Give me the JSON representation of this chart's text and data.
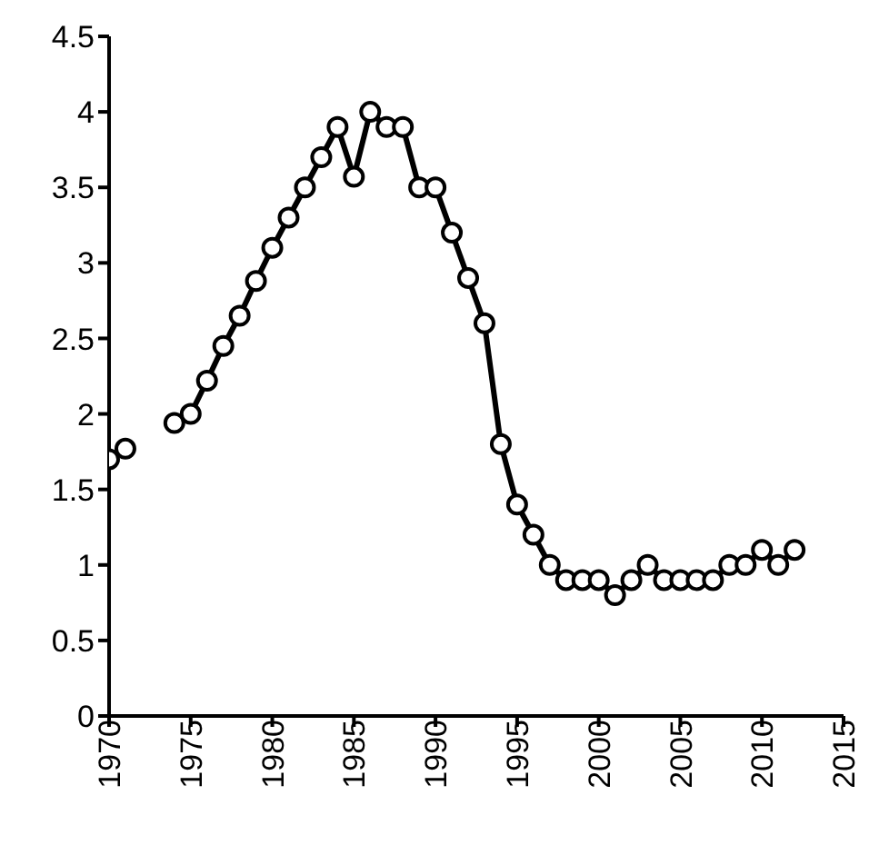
{
  "chart_data": {
    "type": "line",
    "x": [
      1970,
      1971,
      1972,
      1973,
      1974,
      1975,
      1976,
      1977,
      1978,
      1979,
      1980,
      1981,
      1982,
      1983,
      1984,
      1985,
      1986,
      1987,
      1988,
      1989,
      1990,
      1991,
      1992,
      1993,
      1994,
      1995,
      1996,
      1997,
      1998,
      1999,
      2000,
      2001,
      2002,
      2003,
      2004,
      2005,
      2006,
      2007,
      2008,
      2009,
      2010,
      2011,
      2012
    ],
    "series": [
      {
        "color": "#000000",
        "values": [
          1.7,
          1.77,
          null,
          null,
          1.94,
          2.0,
          2.22,
          2.45,
          2.65,
          2.88,
          3.1,
          3.3,
          3.5,
          3.7,
          3.9,
          3.57,
          4.0,
          3.9,
          3.9,
          3.5,
          3.5,
          3.2,
          2.9,
          2.6,
          1.8,
          1.4,
          1.2,
          1.0,
          0.9,
          0.9,
          0.9,
          0.8,
          0.9,
          1.0,
          0.9,
          0.9,
          0.9,
          0.9,
          1.0,
          1.0,
          1.1,
          1.0,
          1.1
        ]
      }
    ],
    "xlim": [
      1970,
      2015
    ],
    "xticks": [
      1970,
      1975,
      1980,
      1985,
      1990,
      1995,
      2000,
      2005,
      2010,
      2015
    ],
    "ylim": [
      0,
      4.5
    ],
    "yticks": [
      0,
      0.5,
      1,
      1.5,
      2,
      2.5,
      3,
      3.5,
      4,
      4.5
    ],
    "marker": "circle",
    "line_style": "solid",
    "legend": false
  }
}
